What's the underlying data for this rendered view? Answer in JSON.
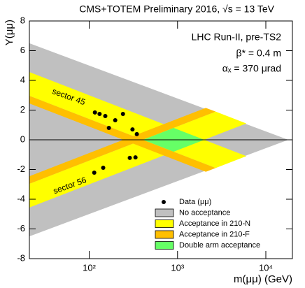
{
  "chart_data": {
    "type": "scatter",
    "title": "CMS+TOTEM Preliminary 2016, √s = 13 TeV",
    "xlabel": "m(μμ) (GeV)",
    "ylabel": "Y(μμ)",
    "xscale": "log",
    "xlim": [
      21,
      20000
    ],
    "ylim": [
      -8,
      8
    ],
    "xticks": [
      {
        "value": 100,
        "label": "10²"
      },
      {
        "value": 1000,
        "label": "10³"
      },
      {
        "value": 10000,
        "label": "10⁴"
      }
    ],
    "yticks": [
      -8,
      -6,
      -4,
      -2,
      0,
      2,
      4,
      6,
      8
    ],
    "hline": 0,
    "legend": "lower right",
    "series": [
      {
        "name": "Data (μμ)",
        "color": "#000000",
        "x": [
          116,
          131,
          152,
          167,
          197,
          241,
          309,
          346,
          114,
          144,
          288,
          334
        ],
        "y": [
          1.84,
          1.74,
          1.6,
          0.8,
          1.32,
          1.74,
          0.7,
          0.38,
          -2.21,
          -1.88,
          -1.22,
          -1.18
        ]
      }
    ],
    "regions": [
      {
        "name": "No acceptance",
        "color": "#c0c0c0",
        "polygons": [
          [
            [
              21,
              6.5
            ],
            [
              18000,
              0
            ],
            [
              21,
              -6.5
            ]
          ]
        ]
      },
      {
        "name": "Acceptance in 210-N",
        "color": "#ffff00",
        "polygons": [
          [
            [
              21,
              4.56
            ],
            [
              6015,
              -1.1
            ],
            [
              2703,
              -1.9
            ],
            [
              21,
              2.96
            ]
          ],
          [
            [
              21,
              -4.56
            ],
            [
              6015,
              1.1
            ],
            [
              2703,
              1.9
            ],
            [
              21,
              -2.96
            ]
          ]
        ]
      },
      {
        "name": "Acceptance in 210-F",
        "color": "#ffbf00",
        "polygons": [
          [
            [
              21,
              2.96
            ],
            [
              2703,
              -1.9
            ],
            [
              2091,
              -2.15
            ],
            [
              21,
              2.45
            ]
          ],
          [
            [
              21,
              -2.96
            ],
            [
              2703,
              1.9
            ],
            [
              2091,
              2.15
            ],
            [
              21,
              -2.45
            ]
          ]
        ]
      },
      {
        "name": "Double arm acceptance",
        "color": "#66ff66",
        "polygons": [
          [
            [
              406,
              0
            ],
            [
              903,
              0.8
            ],
            [
              2010,
              0
            ],
            [
              903,
              -0.8
            ]
          ]
        ]
      }
    ],
    "annotations": [
      "LHC Run-II, pre-TS2",
      "β* = 0.4 m",
      "αₓ = 370 μrad",
      "sector 45",
      "sector 56"
    ]
  }
}
